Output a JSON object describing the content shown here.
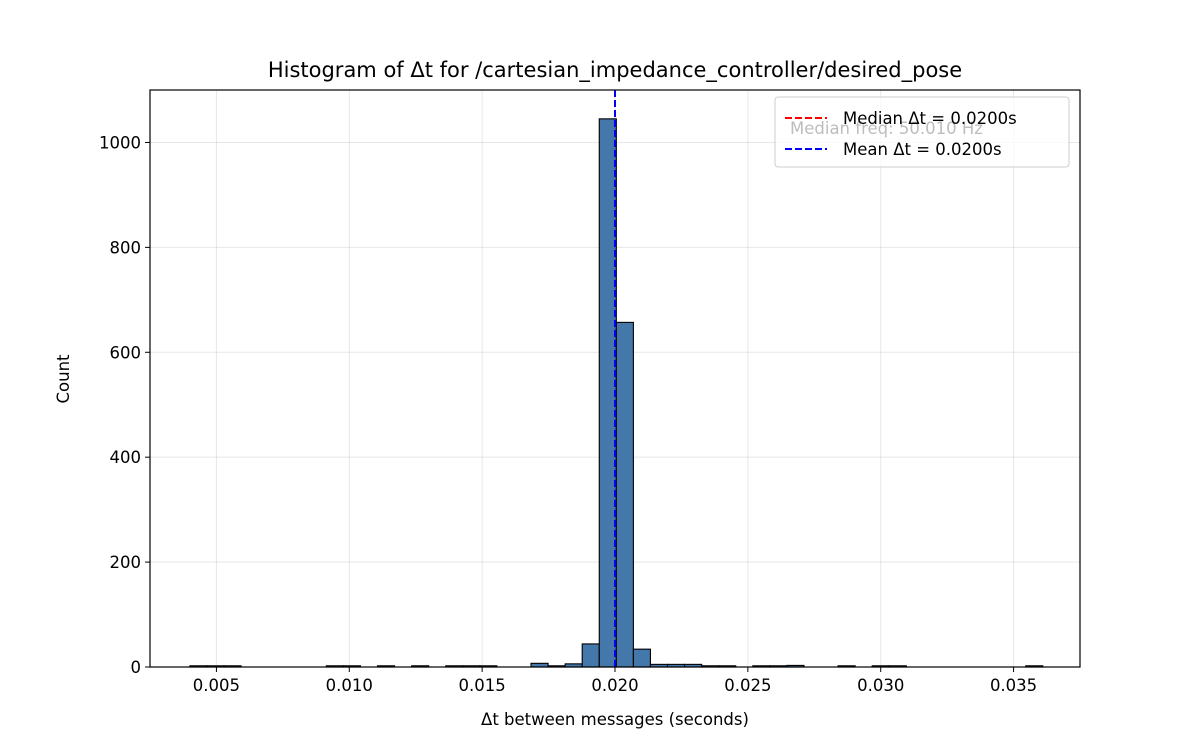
{
  "chart_data": {
    "type": "bar",
    "title": "Histogram of Δt for /cartesian_impedance_controller/desired_pose",
    "xlabel": "Δt between messages (seconds)",
    "ylabel": "Count",
    "xlim": [
      0.0025,
      0.0375
    ],
    "ylim": [
      0,
      1100
    ],
    "x_ticks": [
      0.005,
      0.01,
      0.015,
      0.02,
      0.025,
      0.03,
      0.035
    ],
    "x_tick_labels": [
      "0.005",
      "0.010",
      "0.015",
      "0.020",
      "0.025",
      "0.030",
      "0.035"
    ],
    "y_ticks": [
      0,
      200,
      400,
      600,
      800,
      1000
    ],
    "y_tick_labels": [
      "0",
      "200",
      "400",
      "600",
      "800",
      "1000"
    ],
    "grid": true,
    "bar_color": "#4477aa",
    "bar_edge_color": "#000000",
    "bin_start": 0.004,
    "bin_width": 0.000642,
    "counts": [
      2,
      1,
      1,
      0,
      0,
      0,
      0,
      0,
      1,
      1,
      0,
      1,
      0,
      2,
      0,
      1,
      1,
      1,
      0,
      0,
      7,
      1,
      6,
      44,
      1045,
      657,
      34,
      5,
      5,
      5,
      2,
      2,
      0,
      1,
      1,
      3,
      0,
      0,
      2,
      0,
      1,
      1,
      0,
      0,
      0,
      0,
      0,
      0,
      0,
      2
    ],
    "lines": [
      {
        "name": "Median Δt = 0.0200s",
        "x": 0.02,
        "color": "#ff0000",
        "style": "dashed"
      },
      {
        "name": "Mean Δt = 0.0200s",
        "x": 0.02,
        "color": "#0000ff",
        "style": "dashed"
      }
    ],
    "annotation": "Median freq: 50.010 Hz",
    "legend_position": "top-right"
  }
}
